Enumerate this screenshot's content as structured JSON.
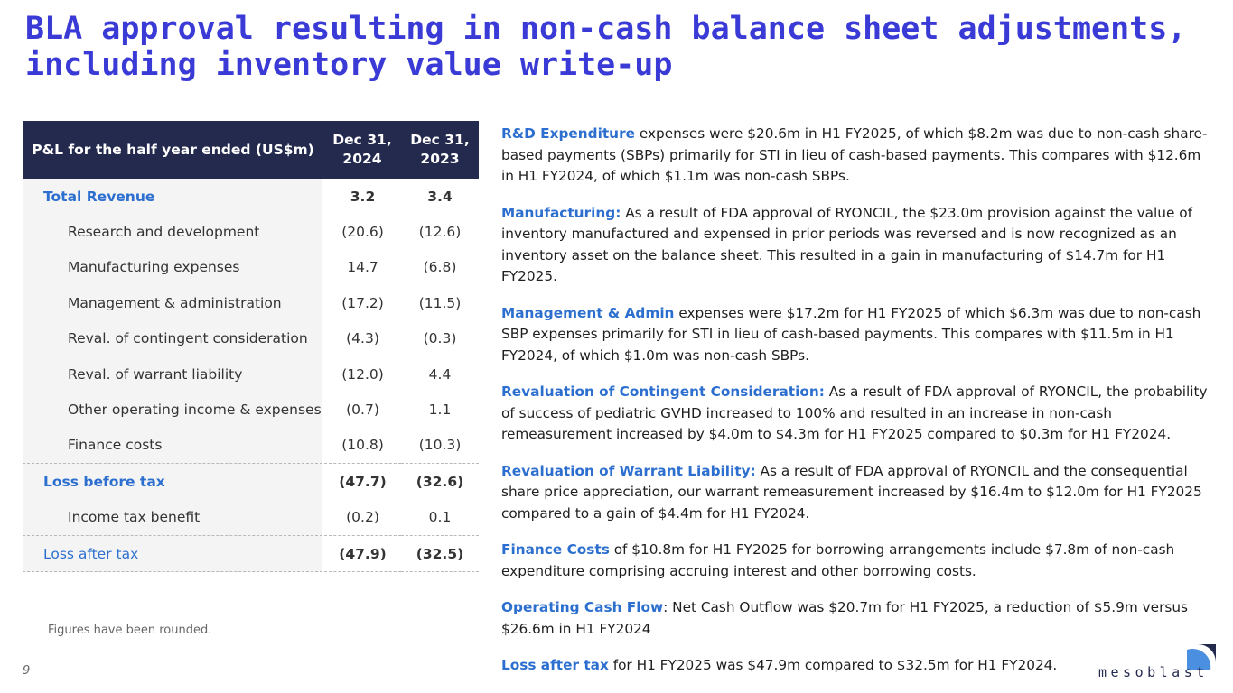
{
  "title": {
    "line1": "BLA approval resulting in non-cash balance sheet adjustments,",
    "line2": "including inventory value write-up"
  },
  "table": {
    "header": {
      "label": "P&L for the half year ended (US$m)",
      "col1_line1": "Dec 31,",
      "col1_line2": "2024",
      "col2_line1": "Dec 31,",
      "col2_line2": "2023"
    },
    "rows": [
      {
        "label": "Total Revenue",
        "dec2024": "3.2",
        "dec2023": "3.4"
      },
      {
        "label": "Research and development",
        "dec2024": "(20.6)",
        "dec2023": "(12.6)"
      },
      {
        "label": "Manufacturing expenses",
        "dec2024": "14.7",
        "dec2023": "(6.8)"
      },
      {
        "label": "Management & administration",
        "dec2024": "(17.2)",
        "dec2023": "(11.5)"
      },
      {
        "label": "Reval. of contingent consideration",
        "dec2024": "(4.3)",
        "dec2023": "(0.3)"
      },
      {
        "label": "Reval. of warrant liability",
        "dec2024": "(12.0)",
        "dec2023": "4.4"
      },
      {
        "label": "Other operating income & expenses",
        "dec2024": "(0.7)",
        "dec2023": "1.1"
      },
      {
        "label": "Finance costs",
        "dec2024": "(10.8)",
        "dec2023": "(10.3)"
      },
      {
        "label": "Loss before tax",
        "dec2024": "(47.7)",
        "dec2023": "(32.6)"
      },
      {
        "label": "Income tax benefit",
        "dec2024": "(0.2)",
        "dec2023": "0.1"
      },
      {
        "label": "Loss after tax",
        "dec2024": "(47.9)",
        "dec2023": "(32.5)"
      }
    ]
  },
  "footnote": "Figures have been rounded.",
  "page_number": "9",
  "commentary": [
    {
      "heading": "R&D Expenditure",
      "text": " expenses were $20.6m in H1 FY2025, of which $8.2m was due to non-cash share-based payments (SBPs) primarily for STI in lieu of cash-based payments. This compares with $12.6m in H1 FY2024, of which $1.1m was non-cash SBPs."
    },
    {
      "heading": "Manufacturing:",
      "text": " As a result of FDA approval of RYONCIL, the $23.0m provision against the value of inventory manufactured and expensed in prior periods was reversed and is now recognized as an inventory asset on the balance sheet. This resulted in a gain in manufacturing of $14.7m for H1 FY2025."
    },
    {
      "heading": "Management & Admin",
      "text": " expenses were $17.2m for H1 FY2025 of which $6.3m was due to non-cash SBP expenses primarily for STI in lieu of cash-based payments. This compares with $11.5m in H1 FY2024, of which $1.0m was non-cash SBPs."
    },
    {
      "heading": "Revaluation of Contingent Consideration:",
      "text": " As a result of FDA approval of RYONCIL, the probability of success of pediatric GVHD increased to 100% and resulted in an increase in non-cash remeasurement increased by $4.0m to $4.3m for H1 FY2025 compared to $0.3m for H1 FY2024."
    },
    {
      "heading": "Revaluation of Warrant Liability:",
      "text": " As a result of FDA approval of RYONCIL and the consequential share price appreciation, our warrant remeasurement increased by $16.4m to $12.0m for H1 FY2025 compared to a gain of $4.4m for H1 FY2024."
    },
    {
      "heading": "Finance Costs",
      "text": " of $10.8m for H1 FY2025 for borrowing arrangements include $7.8m of non-cash expenditure comprising accruing interest and other borrowing costs."
    },
    {
      "heading": "Operating Cash Flow",
      "text": ": Net Cash Outflow was $20.7m for H1 FY2025, a reduction of $5.9m versus $26.6m in H1 FY2024"
    },
    {
      "heading": "Loss after tax",
      "text": " for H1 FY2025 was $47.9m compared to $32.5m for H1 FY2024."
    }
  ],
  "logo": {
    "wordmark": "mesoblast",
    "icon": "mesoblast-logo-icon"
  },
  "colors": {
    "title": "#3a3ad6",
    "accent": "#2c6fcf",
    "header_bg": "#242a4e",
    "row_bg": "#f4f4f4"
  }
}
